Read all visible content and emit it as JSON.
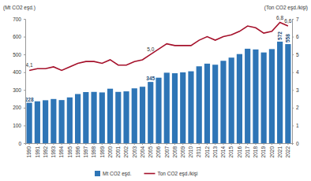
{
  "chart_data": {
    "type": "bar",
    "y_label": "(Mt CO2 eşd.)",
    "y2_label": "(Ton CO2 eşd./kişi)",
    "categories": [
      "1990",
      "1991",
      "1992",
      "1993",
      "1994",
      "1995",
      "1996",
      "1997",
      "1998",
      "1999",
      "2000",
      "2001",
      "2002",
      "2003",
      "2004",
      "2005",
      "2006",
      "2007",
      "2008",
      "2009",
      "2010",
      "2011",
      "2012",
      "2013",
      "2014",
      "2015",
      "2016",
      "2017",
      "2018",
      "2019",
      "2020",
      "2021",
      "2022"
    ],
    "series": [
      {
        "name": "Mt CO2 eşd.",
        "type": "bar",
        "color": "#2e75b6",
        "values": [
          228,
          236,
          242,
          249,
          243,
          258,
          277,
          288,
          289,
          286,
          307,
          289,
          292,
          309,
          318,
          345,
          369,
          397,
          394,
          399,
          405,
          433,
          448,
          442,
          464,
          482,
          502,
          532,
          528,
          511,
          530,
          572,
          558
        ],
        "value_labels": [
          "228",
          null,
          null,
          null,
          null,
          null,
          null,
          null,
          null,
          null,
          null,
          null,
          null,
          null,
          null,
          "345",
          null,
          null,
          null,
          null,
          null,
          null,
          null,
          null,
          null,
          null,
          null,
          null,
          null,
          null,
          null,
          "572",
          "558"
        ]
      },
      {
        "name": "Ton CO2 eşd./kişi",
        "type": "line",
        "axis": "y2",
        "color": "#a5112b",
        "values": [
          4.1,
          4.2,
          4.2,
          4.3,
          4.1,
          4.3,
          4.5,
          4.6,
          4.6,
          4.5,
          4.7,
          4.4,
          4.4,
          4.6,
          4.7,
          5.0,
          5.3,
          5.6,
          5.5,
          5.5,
          5.5,
          5.8,
          6.0,
          5.8,
          6.0,
          6.1,
          6.3,
          6.6,
          6.5,
          6.2,
          6.3,
          6.8,
          6.6
        ],
        "value_labels": [
          "4,1",
          null,
          null,
          null,
          null,
          null,
          null,
          null,
          null,
          null,
          null,
          null,
          null,
          null,
          null,
          "5,0",
          null,
          null,
          null,
          null,
          null,
          null,
          null,
          null,
          null,
          null,
          null,
          null,
          null,
          null,
          null,
          "6,8",
          "6,6"
        ]
      }
    ],
    "ylim": [
      0,
      700
    ],
    "yticks": [
      0,
      100,
      200,
      300,
      400,
      500,
      600,
      700
    ],
    "y2lim": [
      0,
      7
    ],
    "y2ticks": [
      0,
      1,
      2,
      3,
      4,
      5,
      6,
      7
    ],
    "data_labels": true,
    "grid": false,
    "legend": "bottom"
  }
}
